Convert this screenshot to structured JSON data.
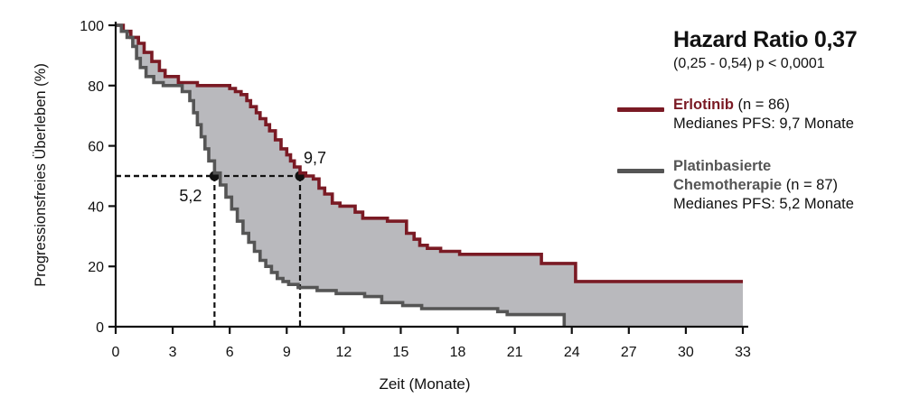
{
  "chart_data": {
    "type": "line",
    "ylabel": "Progressionsfreies Überleben (%)",
    "xlabel": "Zeit (Monate)",
    "xlim": [
      0,
      33
    ],
    "ylim": [
      0,
      100
    ],
    "x_ticks": [
      "0",
      "3",
      "6",
      "9",
      "12",
      "15",
      "18",
      "21",
      "24",
      "27",
      "30",
      "33"
    ],
    "y_ticks": [
      "0",
      "20",
      "40",
      "60",
      "80",
      "100"
    ],
    "hazard_ratio_title": "Hazard Ratio 0,37",
    "hazard_ratio_ci": "(0,25 - 0,54) p < 0,0001",
    "series": [
      {
        "name": "Erlotinib",
        "n_label": "(n = 86)",
        "median_text": "Medianes PFS: 9,7 Monate",
        "median_x": 9.7,
        "median_label": "9,7",
        "color": "#7a1a24",
        "points": [
          [
            0,
            100
          ],
          [
            0.4,
            98
          ],
          [
            0.8,
            96
          ],
          [
            1.2,
            94
          ],
          [
            1.5,
            91
          ],
          [
            1.9,
            88
          ],
          [
            2.3,
            85
          ],
          [
            2.6,
            83
          ],
          [
            3.3,
            81
          ],
          [
            4.0,
            81
          ],
          [
            4.3,
            80
          ],
          [
            5.0,
            80
          ],
          [
            5.8,
            80
          ],
          [
            6.0,
            79
          ],
          [
            6.3,
            78
          ],
          [
            6.6,
            77
          ],
          [
            6.9,
            75
          ],
          [
            7.1,
            73
          ],
          [
            7.4,
            71
          ],
          [
            7.6,
            69
          ],
          [
            7.9,
            67
          ],
          [
            8.1,
            65
          ],
          [
            8.4,
            62
          ],
          [
            8.7,
            59
          ],
          [
            9.0,
            57
          ],
          [
            9.2,
            55
          ],
          [
            9.4,
            53
          ],
          [
            9.7,
            51
          ],
          [
            10.0,
            50
          ],
          [
            10.4,
            49
          ],
          [
            10.7,
            46
          ],
          [
            11.0,
            44
          ],
          [
            11.4,
            41
          ],
          [
            11.8,
            40
          ],
          [
            12.6,
            38
          ],
          [
            13.0,
            36
          ],
          [
            14.3,
            35
          ],
          [
            15.3,
            31
          ],
          [
            15.7,
            29
          ],
          [
            16.0,
            27
          ],
          [
            16.4,
            26
          ],
          [
            17.1,
            25
          ],
          [
            18.1,
            24
          ],
          [
            22.1,
            24
          ],
          [
            22.4,
            21
          ],
          [
            23.3,
            21
          ],
          [
            24.2,
            15
          ],
          [
            33,
            15
          ]
        ]
      },
      {
        "name": "Platinbasierte Chemotherapie",
        "name_line1": "Platinbasierte",
        "name_line2": "Chemotherapie",
        "n_label": "(n = 87)",
        "median_text": "Medianes PFS: 5,2 Monate",
        "median_x": 5.2,
        "median_label": "5,2",
        "color": "#555555",
        "points": [
          [
            0,
            100
          ],
          [
            0.3,
            98
          ],
          [
            0.6,
            96
          ],
          [
            0.9,
            93
          ],
          [
            1.1,
            89
          ],
          [
            1.3,
            86
          ],
          [
            1.6,
            83
          ],
          [
            2.0,
            81
          ],
          [
            2.5,
            80
          ],
          [
            3.1,
            80
          ],
          [
            3.5,
            78
          ],
          [
            3.9,
            75
          ],
          [
            4.1,
            71
          ],
          [
            4.3,
            67
          ],
          [
            4.5,
            63
          ],
          [
            4.7,
            59
          ],
          [
            4.9,
            55
          ],
          [
            5.2,
            51
          ],
          [
            5.5,
            47
          ],
          [
            5.8,
            43
          ],
          [
            6.1,
            39
          ],
          [
            6.4,
            35
          ],
          [
            6.7,
            31
          ],
          [
            7.0,
            28
          ],
          [
            7.3,
            25
          ],
          [
            7.6,
            22
          ],
          [
            7.9,
            20
          ],
          [
            8.2,
            18
          ],
          [
            8.5,
            16
          ],
          [
            8.8,
            15
          ],
          [
            9.1,
            14
          ],
          [
            9.6,
            13
          ],
          [
            10.6,
            12
          ],
          [
            11.6,
            11
          ],
          [
            13.1,
            10
          ],
          [
            14.0,
            8
          ],
          [
            15.1,
            7
          ],
          [
            16.1,
            6
          ],
          [
            17.1,
            6
          ],
          [
            19.6,
            6
          ],
          [
            20.1,
            5
          ],
          [
            20.6,
            4
          ],
          [
            23.6,
            4
          ],
          [
            23.6,
            0
          ]
        ]
      }
    ]
  }
}
